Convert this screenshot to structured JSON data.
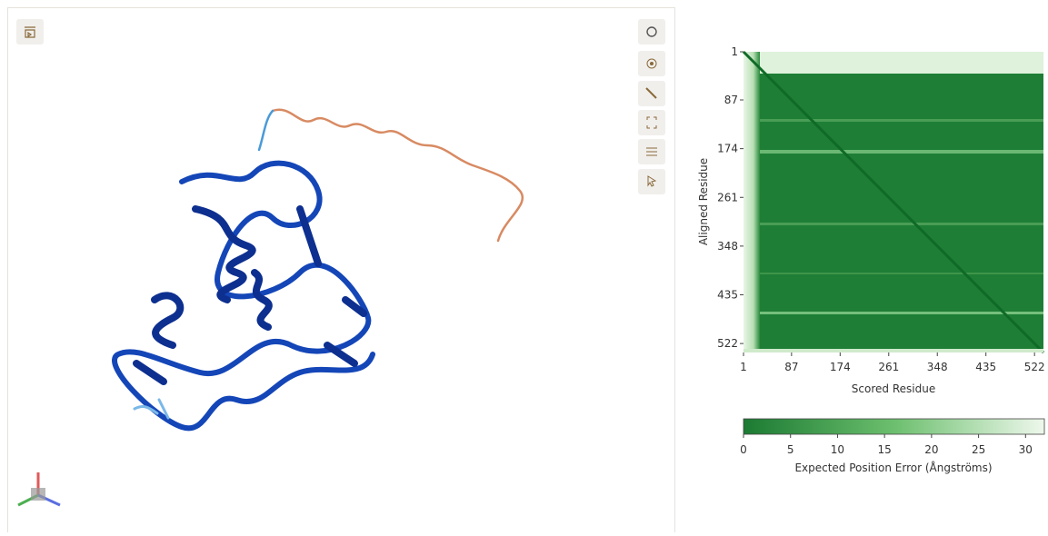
{
  "pae_plot": {
    "ylabel": "Aligned Residue",
    "xlabel": "Scored Residue",
    "xlim": [
      1,
      538
    ],
    "ylim": [
      1,
      538
    ],
    "xticks": [
      1,
      87,
      174,
      261,
      348,
      435,
      522
    ],
    "yticks": [
      1,
      87,
      174,
      261,
      348,
      435,
      522
    ],
    "colorbar": {
      "lim": [
        0,
        32
      ],
      "ticks": [
        0,
        5,
        10,
        15,
        20,
        25,
        30
      ],
      "label": "Expected Position Error (Ångströms)"
    }
  }
}
